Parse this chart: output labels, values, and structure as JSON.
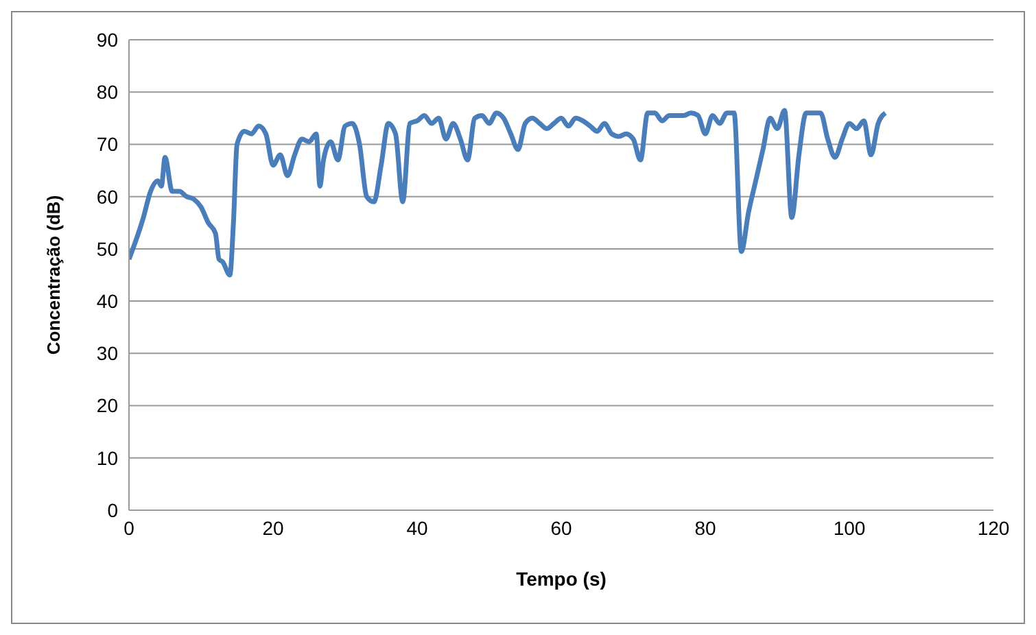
{
  "chart_data": {
    "type": "line",
    "xlabel": "Tempo (s)",
    "ylabel": "Concentração  (dB)",
    "x": [
      0,
      2,
      3,
      4,
      4.5,
      5,
      6,
      7,
      8,
      9,
      10,
      11,
      12,
      12.5,
      13,
      14,
      14.5,
      15,
      16,
      17,
      18,
      19,
      20,
      21,
      22,
      23,
      24,
      25,
      26,
      26.5,
      27,
      28,
      29,
      30,
      31,
      32,
      33,
      34,
      35,
      36,
      37,
      38,
      39,
      40,
      41,
      42,
      43,
      44,
      45,
      46,
      47,
      48,
      49,
      50,
      51,
      52,
      53,
      54,
      55,
      56,
      57,
      58,
      59,
      60,
      61,
      62,
      63,
      64,
      65,
      66,
      67,
      68,
      69,
      70,
      71,
      72,
      73,
      74,
      75,
      76,
      77,
      78,
      79,
      80,
      81,
      82,
      83,
      84,
      85,
      86,
      87,
      88,
      89,
      90,
      91,
      92,
      93,
      94,
      95,
      96,
      97,
      98,
      99,
      100,
      101,
      102,
      103,
      104,
      105
    ],
    "series": [
      {
        "color": "#4a7ebb",
        "values": [
          48,
          56,
          61,
          63,
          62,
          67.5,
          61,
          61,
          60,
          59.5,
          58,
          55,
          53,
          48,
          47.5,
          45,
          55,
          70,
          72.5,
          72,
          73.5,
          72,
          66,
          68,
          64,
          68,
          71,
          70.5,
          72,
          62,
          67,
          70.5,
          67,
          73.5,
          74,
          70,
          60,
          59,
          66,
          74,
          72,
          59,
          74,
          74.5,
          75.5,
          74,
          75,
          71,
          74,
          71,
          67,
          75,
          75.5,
          74,
          76,
          75,
          72,
          69,
          74,
          75,
          74,
          73,
          74,
          75,
          73.5,
          75,
          74.5,
          73.5,
          72.5,
          74,
          72,
          71.5,
          72,
          71,
          67,
          76,
          76,
          74.5,
          75.5,
          75.5,
          75.5,
          76,
          75.5,
          72,
          75.5,
          74,
          76,
          76,
          49.5,
          57,
          63,
          69,
          75,
          73,
          76.5,
          56,
          68,
          76,
          76,
          76,
          71,
          67.5,
          71,
          74,
          73,
          74.5,
          68,
          74,
          76
        ]
      }
    ],
    "xlim": [
      0,
      120
    ],
    "xticks": [
      0,
      20,
      40,
      60,
      80,
      100,
      120
    ],
    "ylim": [
      0,
      90
    ],
    "yticks": [
      0,
      10,
      20,
      30,
      40,
      50,
      60,
      70,
      80,
      90
    ],
    "grid": "y",
    "marker": "none",
    "line_style": "solid",
    "legend": false
  }
}
